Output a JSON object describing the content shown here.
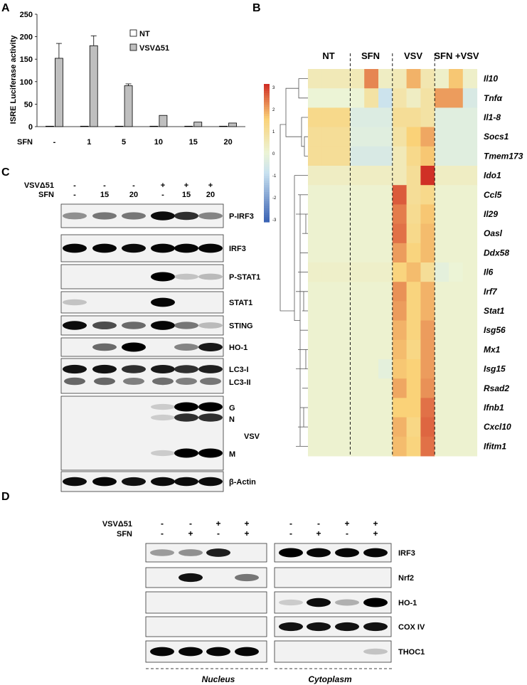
{
  "panels": {
    "a": "A",
    "b": "B",
    "c": "C",
    "d": "D"
  },
  "chart_a": {
    "type": "bar",
    "ylabel": "ISRE Luciferase activity",
    "xlabel": "SFN",
    "categories": [
      "-",
      "1",
      "5",
      "10",
      "15",
      "20"
    ],
    "ylim": [
      0,
      250
    ],
    "yticks": [
      "0",
      "50",
      "100",
      "150",
      "200",
      "250"
    ],
    "legend_placement": "top-right",
    "series": [
      {
        "name": "NT",
        "values": [
          1,
          1,
          1,
          1,
          1,
          1
        ],
        "errors": [
          0,
          0,
          0,
          0,
          0,
          0
        ],
        "color": "#ffffff"
      },
      {
        "name": "VSVΔ51",
        "values": [
          152,
          180,
          91,
          25,
          10,
          8
        ],
        "errors": [
          33,
          22,
          4,
          0,
          0,
          0
        ],
        "color": "#bfbfbf"
      }
    ]
  },
  "heatmap_b": {
    "type": "heatmap",
    "groups": [
      "NT",
      "SFN",
      "VSV",
      "SFN +VSV"
    ],
    "columns_per_group": 3,
    "genes": [
      "Il10",
      "Tnfα",
      "Il1-8",
      "Socs1",
      "Tmem173",
      "Ido1",
      "Ccl5",
      "Il29",
      "Oasl",
      "Ddx58",
      "Il6",
      "Irf7",
      "Stat1",
      "Isg56",
      "Mx1",
      "Isg15",
      "Rsad2",
      "Ifnb1",
      "Cxcl10",
      "Ifitm1"
    ],
    "scale_ticks": [
      "3",
      "2",
      "1",
      "0",
      "-1",
      "-2",
      "-3"
    ],
    "values": [
      [
        0.5,
        0.5,
        0.5,
        0.5,
        2.2,
        0.3,
        0.5,
        1.8,
        0.6,
        0.2,
        1.6,
        0.2
      ],
      [
        0.0,
        0.0,
        0.0,
        0.0,
        0.8,
        -0.8,
        0.7,
        0.3,
        0.8,
        2.0,
        2.0,
        -0.5
      ],
      [
        1.2,
        1.2,
        1.2,
        -0.4,
        -0.4,
        -0.4,
        1.0,
        1.0,
        0.8,
        -0.3,
        -0.3,
        -0.3
      ],
      [
        1.0,
        1.0,
        1.0,
        -0.3,
        -0.3,
        -0.3,
        0.8,
        1.5,
        1.9,
        -0.3,
        -0.3,
        -0.3
      ],
      [
        1.0,
        1.0,
        1.0,
        -0.5,
        -0.5,
        -0.5,
        0.5,
        1.2,
        1.6,
        -0.3,
        -0.3,
        -0.3
      ],
      [
        0.3,
        0.3,
        0.3,
        0.3,
        0.3,
        0.3,
        0.5,
        1.0,
        3.0,
        0.3,
        0.3,
        0.3
      ],
      [
        0.1,
        0.1,
        0.1,
        0.1,
        0.1,
        0.1,
        2.6,
        1.0,
        1.2,
        0.1,
        0.1,
        0.1
      ],
      [
        0.1,
        0.1,
        0.1,
        0.1,
        0.1,
        0.1,
        2.3,
        1.1,
        1.6,
        0.1,
        0.1,
        0.1
      ],
      [
        0.1,
        0.1,
        0.1,
        0.1,
        0.1,
        0.1,
        2.4,
        1.2,
        1.7,
        0.1,
        0.1,
        0.1
      ],
      [
        0.1,
        0.1,
        0.1,
        0.1,
        0.1,
        0.1,
        2.0,
        1.4,
        1.7,
        0.1,
        0.1,
        0.1
      ],
      [
        0.2,
        0.2,
        0.2,
        0.2,
        0.2,
        0.2,
        1.4,
        1.7,
        1.0,
        -0.2,
        0.0,
        0.1
      ],
      [
        0.1,
        0.1,
        0.1,
        0.1,
        0.1,
        0.1,
        2.1,
        1.4,
        1.8,
        0.1,
        0.1,
        0.1
      ],
      [
        0.1,
        0.1,
        0.1,
        0.1,
        0.1,
        0.1,
        2.0,
        1.4,
        1.8,
        0.1,
        0.1,
        0.1
      ],
      [
        0.1,
        0.1,
        0.1,
        0.1,
        0.1,
        0.1,
        1.8,
        1.4,
        2.0,
        0.1,
        0.1,
        0.1
      ],
      [
        0.1,
        0.1,
        0.1,
        0.1,
        0.1,
        0.1,
        1.7,
        1.3,
        2.0,
        0.1,
        0.1,
        0.1
      ],
      [
        0.1,
        0.1,
        0.1,
        0.1,
        0.1,
        -0.2,
        1.6,
        1.5,
        2.0,
        0.1,
        0.1,
        0.1
      ],
      [
        0.1,
        0.1,
        0.1,
        0.1,
        0.1,
        0.1,
        1.9,
        1.5,
        2.1,
        0.1,
        0.1,
        0.1
      ],
      [
        0.1,
        0.1,
        0.1,
        0.1,
        0.1,
        0.1,
        1.5,
        1.5,
        2.4,
        0.1,
        0.1,
        0.1
      ],
      [
        0.1,
        0.1,
        0.1,
        0.1,
        0.1,
        0.1,
        1.8,
        1.3,
        2.5,
        0.1,
        0.1,
        0.1
      ],
      [
        0.1,
        0.1,
        0.1,
        0.1,
        0.1,
        0.1,
        1.7,
        1.4,
        2.4,
        0.1,
        0.1,
        0.1
      ]
    ]
  },
  "blot_c": {
    "header_rows": [
      {
        "label": "VSVΔ51",
        "values": [
          "-",
          "-",
          "-",
          "+",
          "+",
          "+"
        ]
      },
      {
        "label": "SFN",
        "values": [
          "-",
          "15",
          "20",
          "-",
          "15",
          "20"
        ]
      }
    ],
    "blots": [
      {
        "labels": [
          "P-IRF3"
        ],
        "bands": [
          0.35,
          0.45,
          0.45,
          0.9,
          0.7,
          0.4
        ]
      },
      {
        "labels": [
          "IRF3"
        ],
        "bands": [
          0.95,
          0.95,
          0.9,
          0.95,
          0.95,
          0.95
        ]
      },
      {
        "labels": [
          "P-STAT1"
        ],
        "bands": [
          0,
          0,
          0,
          1.0,
          0.1,
          0.15
        ]
      },
      {
        "labels": [
          "STAT1"
        ],
        "bands": [
          0.1,
          0,
          0,
          0.95,
          0,
          0
        ]
      },
      {
        "labels": [
          "STING"
        ],
        "bands": [
          0.9,
          0.6,
          0.5,
          0.95,
          0.45,
          0.15
        ]
      },
      {
        "labels": [
          "HO-1"
        ],
        "bands": [
          0,
          0.5,
          1.0,
          0,
          0.4,
          0.8
        ]
      },
      {
        "labels": [
          "LC3-I",
          "LC3-II"
        ],
        "bands": [
          0.85,
          0.85,
          0.7,
          0.8,
          0.7,
          0.75
        ]
      },
      {
        "labels": [
          "G",
          "N",
          "VSV",
          "M"
        ],
        "bands": [
          0,
          0,
          0,
          0.05,
          1.0,
          1.0
        ]
      },
      {
        "labels": [
          "β-Actin"
        ],
        "bands": [
          0.9,
          0.95,
          0.85,
          0.9,
          0.9,
          0.9
        ]
      }
    ]
  },
  "blot_d": {
    "header_rows": [
      {
        "label": "VSVΔ51",
        "values": [
          "-",
          "-",
          "+",
          "+",
          "-",
          "-",
          "+",
          "+"
        ]
      },
      {
        "label": "SFN",
        "values": [
          "-",
          "+",
          "-",
          "+",
          "-",
          "+",
          "-",
          "+"
        ]
      }
    ],
    "blots": [
      {
        "label": "IRF3",
        "nucleus": [
          0.3,
          0.35,
          0.75,
          0
        ],
        "cytoplasm": [
          1.0,
          0.95,
          0.95,
          0.95
        ]
      },
      {
        "label": "Nrf2",
        "nucleus": [
          0,
          0.85,
          0,
          0.45
        ],
        "cytoplasm": [
          0,
          0,
          0,
          0
        ]
      },
      {
        "label": "HO-1",
        "nucleus": [
          0,
          0,
          0,
          0
        ],
        "cytoplasm": [
          0.05,
          0.9,
          0.2,
          1.0
        ]
      },
      {
        "label": "COX IV",
        "nucleus": [
          0,
          0,
          0,
          0
        ],
        "cytoplasm": [
          0.85,
          0.85,
          0.85,
          0.85
        ]
      },
      {
        "label": "THOC1",
        "nucleus": [
          0.95,
          0.95,
          0.95,
          0.95
        ],
        "cytoplasm": [
          0,
          0,
          0,
          0.1
        ]
      }
    ],
    "fractions": [
      "Nucleus",
      "Cytoplasm"
    ]
  }
}
